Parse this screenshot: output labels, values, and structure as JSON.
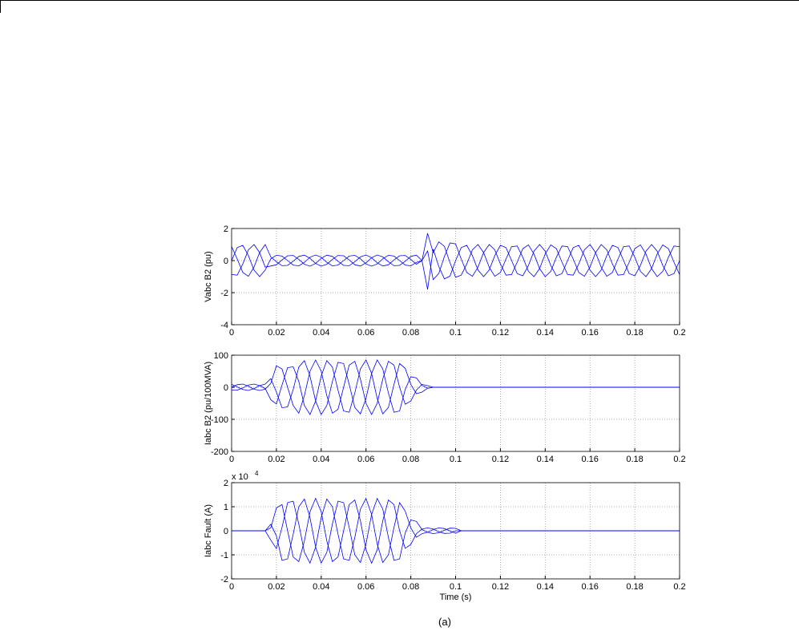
{
  "caption": "(a)",
  "chart_data": [
    {
      "type": "line",
      "ylabel": "Vabc B2 (pu)",
      "xlim": [
        0,
        0.2
      ],
      "ylim": [
        -4,
        2
      ],
      "xticks": [
        0,
        0.02,
        0.04,
        0.06,
        0.08,
        0.1,
        0.12,
        0.14,
        0.16,
        0.18,
        0.2
      ],
      "yticks": [
        -4,
        -2,
        0,
        2
      ],
      "grid": true,
      "x": [
        0,
        0.0025,
        0.005,
        0.0075,
        0.01,
        0.0125,
        0.015,
        0.0175,
        0.02,
        0.0225,
        0.025,
        0.0275,
        0.03,
        0.0325,
        0.035,
        0.0375,
        0.04,
        0.0425,
        0.045,
        0.0475,
        0.05,
        0.0525,
        0.055,
        0.0575,
        0.06,
        0.0625,
        0.065,
        0.0675,
        0.07,
        0.0725,
        0.075,
        0.0775,
        0.08,
        0.0825,
        0.085,
        0.0875,
        0.09,
        0.0925,
        0.095,
        0.0975,
        0.1,
        0.1025,
        0.105,
        0.1075,
        0.11,
        0.1125,
        0.115,
        0.1175,
        0.12,
        0.1225,
        0.125,
        0.1275,
        0.13,
        0.1325,
        0.135,
        0.1375,
        0.14,
        0.1425,
        0.145,
        0.1475,
        0.15,
        0.1525,
        0.155,
        0.1575,
        0.16,
        0.1625,
        0.165,
        0.1675,
        0.17,
        0.1725,
        0.175,
        0.1775,
        0.18,
        0.1825,
        0.185,
        0.1875,
        0.19,
        0.1925,
        0.195,
        0.1975,
        0.2
      ],
      "series": [
        {
          "color": "#0000ff",
          "values": [
            0,
            0.81,
            0.95,
            0.31,
            -0.59,
            -1,
            -0.59,
            0.11,
            0.33,
            0.28,
            0,
            -0.28,
            -0.33,
            -0.11,
            0.21,
            0.35,
            0.21,
            -0.11,
            -0.33,
            -0.28,
            0,
            0.28,
            0.33,
            0.11,
            -0.21,
            -0.35,
            -0.21,
            0.11,
            0.33,
            0.28,
            0,
            -0.28,
            -0.33,
            -0.11,
            0,
            -1.8,
            0.71,
            -0.37,
            -1.14,
            -0.97,
            0,
            0.81,
            0.95,
            0.31,
            -0.59,
            -1,
            -0.59,
            0.31,
            0.95,
            0.81,
            0,
            -0.81,
            -0.95,
            -0.31,
            0.59,
            1,
            0.59,
            -0.31,
            -0.95,
            -0.81,
            0,
            0.81,
            0.95,
            0.31,
            -0.59,
            -1,
            -0.59,
            0.31,
            0.95,
            0.81,
            0,
            -0.81,
            -0.95,
            -0.31,
            0.59,
            1,
            0.59,
            -0.31,
            -0.95,
            -0.81,
            0
          ]
        },
        {
          "color": "#0000ff",
          "values": [
            -0.87,
            -0.91,
            -0.21,
            0.67,
            1,
            0.5,
            -0.41,
            -0.34,
            -0.26,
            0.04,
            0.3,
            0.32,
            0.07,
            -0.23,
            -0.35,
            -0.18,
            0.14,
            0.34,
            0.26,
            -0.04,
            -0.3,
            -0.32,
            -0.07,
            0.23,
            0.35,
            0.18,
            -0.14,
            -0.34,
            -0.26,
            0.04,
            0.3,
            0.32,
            0.07,
            -0.23,
            0,
            1.7,
            0.49,
            1.17,
            0.89,
            -0.13,
            -1.04,
            -0.91,
            -0.21,
            0.67,
            1,
            0.5,
            -0.41,
            -0.98,
            -0.74,
            0.1,
            0.87,
            0.91,
            0.21,
            -0.67,
            -1,
            -0.5,
            0.41,
            0.98,
            0.74,
            -0.1,
            -0.87,
            -0.91,
            -0.21,
            0.67,
            1,
            0.5,
            -0.41,
            -0.98,
            -0.74,
            0.1,
            0.87,
            0.91,
            0.21,
            -0.67,
            -1,
            -0.5,
            0.41,
            0.98,
            0.74,
            -0.1,
            -0.87
          ]
        },
        {
          "color": "#0000ff",
          "values": [
            0.87,
            0.1,
            -0.74,
            -0.98,
            -0.41,
            0.5,
            1,
            0.23,
            -0.07,
            -0.32,
            -0.3,
            -0.04,
            0.26,
            0.34,
            0.14,
            -0.18,
            -0.35,
            -0.23,
            0.07,
            0.32,
            0.3,
            0.04,
            -0.26,
            -0.34,
            -0.14,
            0.18,
            0.35,
            0.23,
            -0.07,
            -0.32,
            -0.3,
            -0.04,
            0.26,
            0.34,
            0,
            0.6,
            -1.19,
            -0.8,
            0.25,
            1.1,
            1.04,
            0.1,
            -0.74,
            -0.98,
            -0.41,
            0.5,
            1,
            0.67,
            -0.21,
            -0.91,
            -0.87,
            -0.1,
            0.74,
            0.98,
            0.41,
            -0.5,
            -1,
            -0.67,
            0.21,
            0.91,
            0.87,
            0.1,
            -0.74,
            -0.98,
            -0.41,
            0.5,
            1,
            0.67,
            -0.21,
            -0.91,
            -0.87,
            -0.1,
            0.74,
            0.98,
            0.41,
            -0.5,
            -1,
            -0.67,
            0.21,
            0.91,
            0.87
          ]
        }
      ]
    },
    {
      "type": "line",
      "ylabel": "Iabc B2 (pu/100MVA)",
      "xlim": [
        0,
        0.2
      ],
      "ylim": [
        -200,
        100
      ],
      "xticks": [
        0,
        0.02,
        0.04,
        0.06,
        0.08,
        0.1,
        0.12,
        0.14,
        0.16,
        0.18,
        0.2
      ],
      "yticks": [
        -200,
        -100,
        0,
        100
      ],
      "grid": true,
      "x": [
        0,
        0.0025,
        0.005,
        0.0075,
        0.01,
        0.0125,
        0.015,
        0.0175,
        0.02,
        0.0225,
        0.025,
        0.0275,
        0.03,
        0.0325,
        0.035,
        0.0375,
        0.04,
        0.0425,
        0.045,
        0.0475,
        0.05,
        0.0525,
        0.055,
        0.0575,
        0.06,
        0.0625,
        0.065,
        0.0675,
        0.07,
        0.0725,
        0.075,
        0.0775,
        0.08,
        0.0825,
        0.085,
        0.0875,
        0.09,
        0.0925,
        0.095,
        0.0975,
        0.1,
        0.1025,
        0.105,
        0.1075,
        0.11,
        0.1125,
        0.115,
        0.1175,
        0.12,
        0.1225,
        0.125,
        0.1275,
        0.13,
        0.1325,
        0.135,
        0.1375,
        0.14,
        0.1425,
        0.145,
        0.1475,
        0.15,
        0.1525,
        0.155,
        0.1575,
        0.16,
        0.1625,
        0.165,
        0.1675,
        0.17,
        0.1725,
        0.175,
        0.1775,
        0.18,
        0.1825,
        0.185,
        0.1875,
        0.19,
        0.1925,
        0.195,
        0.1975,
        0.2
      ],
      "series": [
        {
          "color": "#0000ff",
          "values": [
            0,
            8,
            10,
            3,
            -6,
            -10,
            -6,
            12,
            67,
            57,
            0,
            -57,
            -81,
            -26,
            50,
            85,
            50,
            -26,
            -81,
            -69,
            0,
            69,
            81,
            26,
            -50,
            -85,
            -50,
            26,
            81,
            69,
            0,
            -53,
            -43,
            -9,
            9,
            5,
            0,
            0,
            0,
            0,
            0,
            0,
            0,
            0,
            0,
            0,
            0,
            0,
            0,
            0,
            0,
            0,
            0,
            0,
            0,
            0,
            0,
            0,
            0,
            0,
            0,
            0,
            0,
            0,
            0,
            0,
            0,
            0,
            0,
            0,
            0,
            0,
            0,
            0,
            0,
            0,
            0,
            0,
            0,
            0,
            0
          ]
        },
        {
          "color": "#0000ff",
          "values": [
            -9,
            -9,
            -2,
            7,
            10,
            5,
            -4,
            -39,
            -52,
            7,
            61,
            64,
            18,
            -57,
            -85,
            -43,
            35,
            83,
            63,
            -9,
            -74,
            -78,
            -18,
            57,
            85,
            43,
            -35,
            -83,
            -63,
            9,
            74,
            59,
            9,
            -20,
            -15,
            -3,
            0,
            0,
            0,
            0,
            0,
            0,
            0,
            0,
            0,
            0,
            0,
            0,
            0,
            0,
            0,
            0,
            0,
            0,
            0,
            0,
            0,
            0,
            0,
            0,
            0,
            0,
            0,
            0,
            0,
            0,
            0,
            0,
            0,
            0,
            0,
            0,
            0,
            0,
            0,
            0,
            0,
            0,
            0,
            0,
            0
          ]
        },
        {
          "color": "#0000ff",
          "values": [
            9,
            1,
            -7,
            -10,
            -4,
            5,
            10,
            27,
            -15,
            -64,
            -61,
            -7,
            63,
            83,
            35,
            -43,
            -85,
            -57,
            18,
            78,
            74,
            9,
            -63,
            -83,
            -35,
            43,
            85,
            57,
            -18,
            -78,
            -74,
            -7,
            33,
            29,
            6,
            -3,
            0,
            0,
            0,
            0,
            0,
            0,
            0,
            0,
            0,
            0,
            0,
            0,
            0,
            0,
            0,
            0,
            0,
            0,
            0,
            0,
            0,
            0,
            0,
            0,
            0,
            0,
            0,
            0,
            0,
            0,
            0,
            0,
            0,
            0,
            0,
            0,
            0,
            0,
            0,
            0,
            0,
            0,
            0,
            0,
            0
          ]
        }
      ]
    },
    {
      "type": "line",
      "ylabel": "Iabc Fault (A)",
      "xlabel": "Time (s)",
      "y_multiplier": "x 10",
      "y_multiplier_exponent": "4",
      "xlim": [
        0,
        0.2
      ],
      "ylim": [
        -2,
        2
      ],
      "xticks": [
        0,
        0.02,
        0.04,
        0.06,
        0.08,
        0.1,
        0.12,
        0.14,
        0.16,
        0.18,
        0.2
      ],
      "yticks": [
        -2,
        -1,
        0,
        1,
        2
      ],
      "grid": true,
      "x": [
        0,
        0.0025,
        0.005,
        0.0075,
        0.01,
        0.0125,
        0.015,
        0.0175,
        0.02,
        0.0225,
        0.025,
        0.0275,
        0.03,
        0.0325,
        0.035,
        0.0375,
        0.04,
        0.0425,
        0.045,
        0.0475,
        0.05,
        0.0525,
        0.055,
        0.0575,
        0.06,
        0.0625,
        0.065,
        0.0675,
        0.07,
        0.0725,
        0.075,
        0.0775,
        0.08,
        0.0825,
        0.085,
        0.0875,
        0.09,
        0.0925,
        0.095,
        0.0975,
        0.1,
        0.1025,
        0.105,
        0.1075,
        0.11,
        0.1125,
        0.115,
        0.1175,
        0.12,
        0.1225,
        0.125,
        0.1275,
        0.13,
        0.1325,
        0.135,
        0.1375,
        0.14,
        0.1425,
        0.145,
        0.1475,
        0.15,
        0.1525,
        0.155,
        0.1575,
        0.16,
        0.1625,
        0.165,
        0.1675,
        0.17,
        0.1725,
        0.175,
        0.1775,
        0.18,
        0.1825,
        0.185,
        0.1875,
        0.19,
        0.1925,
        0.195,
        0.1975,
        0.2
      ],
      "series": [
        {
          "color": "#0000ff",
          "values": [
            0,
            0,
            0,
            0,
            0,
            0,
            0,
            0.12,
            0.95,
            1.09,
            0,
            -1.09,
            -1.28,
            -0.42,
            0.79,
            1.35,
            0.79,
            -0.42,
            -1.28,
            -1.09,
            0,
            1.09,
            1.28,
            0.42,
            -0.79,
            -1.35,
            -0.79,
            0.42,
            1.28,
            1.09,
            0,
            -0.73,
            -0.57,
            -0.12,
            0.07,
            0.12,
            0.07,
            -0.04,
            -0.11,
            -0.1,
            0,
            0,
            0,
            0,
            0,
            0,
            0,
            0,
            0,
            0,
            0,
            0,
            0,
            0,
            0,
            0,
            0,
            0,
            0,
            0,
            0,
            0,
            0,
            0,
            0,
            0,
            0,
            0,
            0,
            0,
            0,
            0,
            0,
            0,
            0,
            0,
            0,
            0,
            0,
            0,
            0
          ]
        },
        {
          "color": "#0000ff",
          "values": [
            0,
            0,
            0,
            0,
            0,
            0,
            0,
            -0.39,
            -0.74,
            0.14,
            1.17,
            1.23,
            0.28,
            -0.9,
            -1.34,
            -0.68,
            0.55,
            1.32,
            1,
            -0.14,
            -1.17,
            -1.23,
            -0.28,
            0.9,
            1.34,
            0.68,
            -0.55,
            -1.32,
            -1,
            0.14,
            1.17,
            0.82,
            0.12,
            -0.27,
            -0.12,
            -0.06,
            0.05,
            0.12,
            0.09,
            -0.01,
            -0.1,
            0,
            0,
            0,
            0,
            0,
            0,
            0,
            0,
            0,
            0,
            0,
            0,
            0,
            0,
            0,
            0,
            0,
            0,
            0,
            0,
            0,
            0,
            0,
            0,
            0,
            0,
            0,
            0,
            0,
            0,
            0,
            0,
            0,
            0,
            0,
            0,
            0,
            0,
            0,
            0
          ]
        },
        {
          "color": "#0000ff",
          "values": [
            0,
            0,
            0,
            0,
            0,
            0,
            0,
            0.27,
            -0.21,
            -1.23,
            -1.17,
            -0.14,
            1,
            1.32,
            0.55,
            -0.68,
            -1.34,
            -0.9,
            0.28,
            1.23,
            1.17,
            0.14,
            -1,
            -1.32,
            -0.55,
            0.68,
            1.34,
            0.9,
            -0.28,
            -1.23,
            -1.17,
            -0.09,
            0.45,
            0.39,
            0.05,
            -0.06,
            -0.12,
            -0.08,
            0.02,
            0.11,
            0.1,
            0,
            0,
            0,
            0,
            0,
            0,
            0,
            0,
            0,
            0,
            0,
            0,
            0,
            0,
            0,
            0,
            0,
            0,
            0,
            0,
            0,
            0,
            0,
            0,
            0,
            0,
            0,
            0,
            0,
            0,
            0,
            0,
            0,
            0,
            0,
            0,
            0,
            0,
            0,
            0
          ]
        }
      ]
    }
  ]
}
